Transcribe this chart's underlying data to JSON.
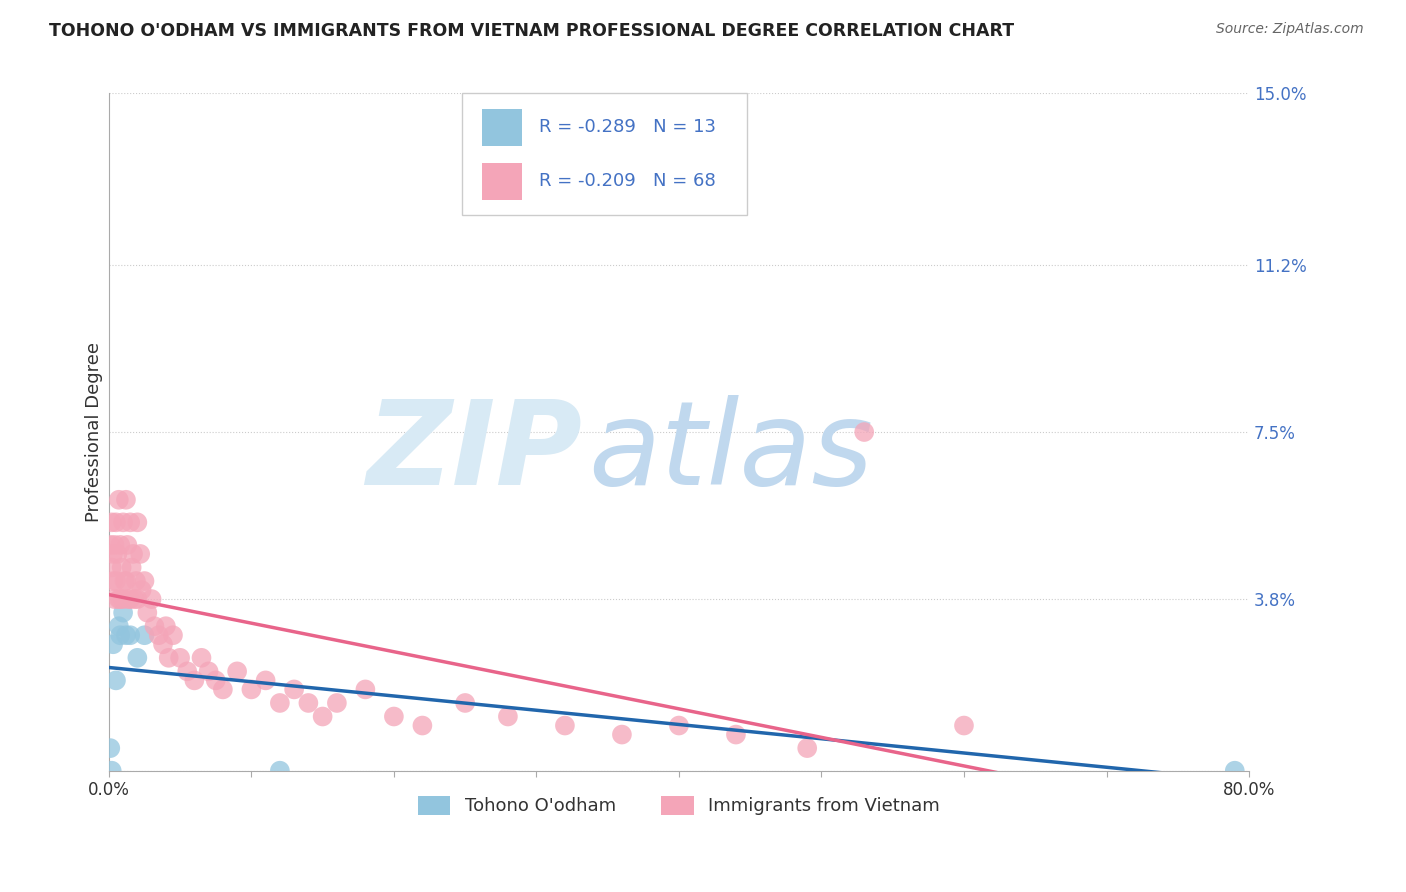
{
  "title": "TOHONO O'ODHAM VS IMMIGRANTS FROM VIETNAM PROFESSIONAL DEGREE CORRELATION CHART",
  "source": "Source: ZipAtlas.com",
  "ylabel": "Professional Degree",
  "xlim": [
    0.0,
    0.8
  ],
  "ylim": [
    0.0,
    0.15
  ],
  "yticks": [
    0.0,
    0.038,
    0.075,
    0.112,
    0.15
  ],
  "ytick_labels": [
    "",
    "3.8%",
    "7.5%",
    "11.2%",
    "15.0%"
  ],
  "xticks": [
    0.0,
    0.1,
    0.2,
    0.3,
    0.4,
    0.5,
    0.6,
    0.7,
    0.8
  ],
  "xtick_labels": [
    "0.0%",
    "",
    "",
    "",
    "",
    "",
    "",
    "",
    "80.0%"
  ],
  "series": [
    {
      "name": "Tohono O'odham",
      "color": "#92c5de",
      "line_color": "#2166ac",
      "R": -0.289,
      "N": 13,
      "x": [
        0.001,
        0.002,
        0.003,
        0.005,
        0.007,
        0.008,
        0.01,
        0.012,
        0.015,
        0.02,
        0.025,
        0.12,
        0.79
      ],
      "y": [
        0.005,
        0.0,
        0.028,
        0.02,
        0.032,
        0.03,
        0.035,
        0.03,
        0.03,
        0.025,
        0.03,
        0.0,
        0.0
      ]
    },
    {
      "name": "Immigrants from Vietnam",
      "color": "#f4a5b8",
      "line_color": "#e8648a",
      "R": -0.209,
      "N": 68,
      "x": [
        0.001,
        0.002,
        0.002,
        0.003,
        0.003,
        0.004,
        0.004,
        0.005,
        0.005,
        0.006,
        0.007,
        0.007,
        0.008,
        0.008,
        0.009,
        0.01,
        0.01,
        0.011,
        0.012,
        0.012,
        0.013,
        0.014,
        0.015,
        0.015,
        0.016,
        0.017,
        0.018,
        0.019,
        0.02,
        0.02,
        0.022,
        0.023,
        0.025,
        0.027,
        0.03,
        0.032,
        0.035,
        0.038,
        0.04,
        0.042,
        0.045,
        0.05,
        0.055,
        0.06,
        0.065,
        0.07,
        0.075,
        0.08,
        0.09,
        0.1,
        0.11,
        0.12,
        0.13,
        0.14,
        0.15,
        0.16,
        0.18,
        0.2,
        0.22,
        0.25,
        0.28,
        0.32,
        0.36,
        0.4,
        0.44,
        0.49,
        0.53,
        0.6
      ],
      "y": [
        0.05,
        0.055,
        0.045,
        0.048,
        0.042,
        0.05,
        0.038,
        0.055,
        0.042,
        0.048,
        0.06,
        0.038,
        0.05,
        0.038,
        0.045,
        0.055,
        0.038,
        0.042,
        0.06,
        0.042,
        0.05,
        0.038,
        0.055,
        0.038,
        0.045,
        0.048,
        0.038,
        0.042,
        0.055,
        0.038,
        0.048,
        0.04,
        0.042,
        0.035,
        0.038,
        0.032,
        0.03,
        0.028,
        0.032,
        0.025,
        0.03,
        0.025,
        0.022,
        0.02,
        0.025,
        0.022,
        0.02,
        0.018,
        0.022,
        0.018,
        0.02,
        0.015,
        0.018,
        0.015,
        0.012,
        0.015,
        0.018,
        0.012,
        0.01,
        0.015,
        0.012,
        0.01,
        0.008,
        0.01,
        0.008,
        0.005,
        0.075,
        0.01
      ]
    }
  ],
  "watermark_ZIP": "ZIP",
  "watermark_atlas": "atlas",
  "watermark_color_ZIP": "#d8eaf5",
  "watermark_color_atlas": "#c0d8ee",
  "background_color": "#ffffff",
  "grid_color": "#cccccc",
  "title_color": "#222222",
  "right_tick_color": "#4472c4",
  "legend_text_color": "#4472c4",
  "legend_patch_blue": "#92c5de",
  "legend_patch_pink": "#f4a5b8"
}
